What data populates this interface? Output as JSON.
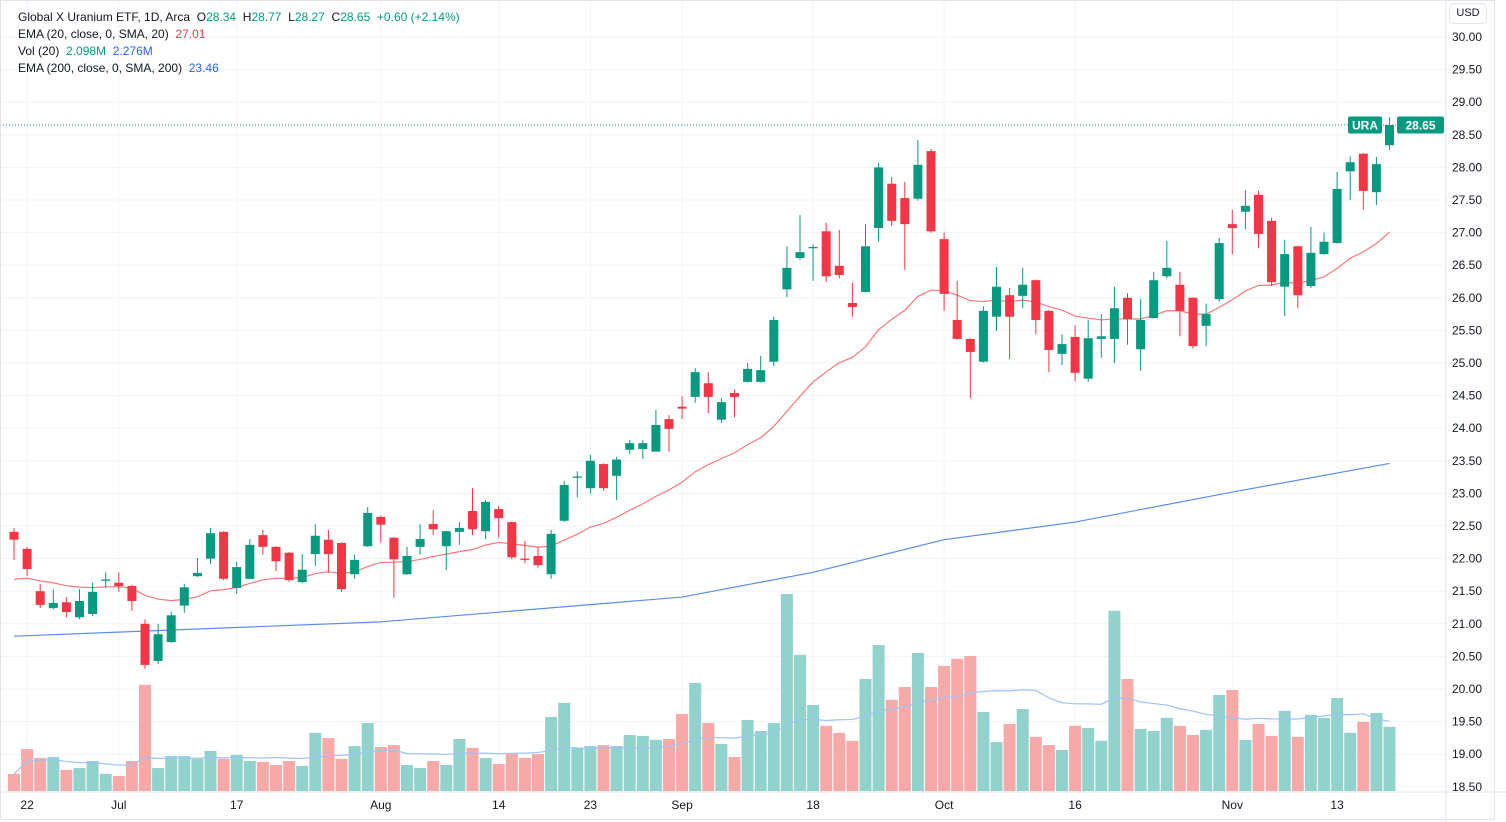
{
  "legend": {
    "title": "Global X Uranium ETF, 1D, Arca",
    "o_label": "O",
    "o": "28.34",
    "h_label": "H",
    "h": "28.77",
    "l_label": "L",
    "l": "28.27",
    "c_label": "C",
    "c": "28.65",
    "change": "+0.60 (+2.14%)",
    "ema20_label": "EMA (20, close, 0, SMA, 20)",
    "ema20_value": "27.01",
    "vol_label": "Vol (20)",
    "vol_value": "2.098M",
    "vol_ma_value": "2.276M",
    "ema200_label": "EMA (200, close, 0, SMA, 200)",
    "ema200_value": "23.46"
  },
  "currency_button": "USD",
  "price_tag": {
    "symbol": "URA",
    "value": "28.65"
  },
  "colors": {
    "up": "#089981",
    "down": "#f23645",
    "vol_up": "#92d2cc",
    "vol_down": "#f7a9a7",
    "ema20": "#f7787c",
    "ema200": "#5b8def",
    "vol_ma": "#9ec3f7"
  },
  "chart_data": {
    "type": "candlestick",
    "title": "Global X Uranium ETF, 1D, Arca",
    "ylim": [
      18.5,
      30.0
    ],
    "y_ticks": [
      "18.50",
      "19.00",
      "19.50",
      "20.00",
      "20.50",
      "21.00",
      "21.50",
      "22.00",
      "22.50",
      "23.00",
      "23.50",
      "24.00",
      "24.50",
      "25.00",
      "25.50",
      "26.00",
      "26.50",
      "27.00",
      "27.50",
      "28.00",
      "28.50",
      "29.00",
      "29.50",
      "30.00"
    ],
    "x_ticks": [
      {
        "index": 1,
        "label": "22"
      },
      {
        "index": 8,
        "label": "Jul"
      },
      {
        "index": 17,
        "label": "17"
      },
      {
        "index": 28,
        "label": "Aug"
      },
      {
        "index": 37,
        "label": "14"
      },
      {
        "index": 44,
        "label": "23"
      },
      {
        "index": 51,
        "label": "Sep"
      },
      {
        "index": 61,
        "label": "18"
      },
      {
        "index": 71,
        "label": "Oct"
      },
      {
        "index": 81,
        "label": "16"
      },
      {
        "index": 93,
        "label": "Nov"
      },
      {
        "index": 101,
        "label": "13"
      }
    ],
    "grid": true,
    "ohlc": [
      [
        22.41,
        22.47,
        21.98,
        22.29
      ],
      [
        22.15,
        22.18,
        21.73,
        21.84
      ],
      [
        21.5,
        21.61,
        21.24,
        21.29
      ],
      [
        21.24,
        21.53,
        21.22,
        21.32
      ],
      [
        21.33,
        21.41,
        21.1,
        21.18
      ],
      [
        21.1,
        21.53,
        21.07,
        21.35
      ],
      [
        21.15,
        21.63,
        21.12,
        21.49
      ],
      [
        21.66,
        21.79,
        21.55,
        21.68
      ],
      [
        21.63,
        21.79,
        21.49,
        21.58
      ],
      [
        21.58,
        21.6,
        21.2,
        21.35
      ],
      [
        21.0,
        21.07,
        20.31,
        20.37
      ],
      [
        20.43,
        21.0,
        20.38,
        20.84
      ],
      [
        20.72,
        21.18,
        20.71,
        21.13
      ],
      [
        21.28,
        21.61,
        21.17,
        21.56
      ],
      [
        21.73,
        22.01,
        21.72,
        21.78
      ],
      [
        22.0,
        22.47,
        21.92,
        22.39
      ],
      [
        22.41,
        22.42,
        21.67,
        21.69
      ],
      [
        21.55,
        21.95,
        21.46,
        21.87
      ],
      [
        21.69,
        22.3,
        21.68,
        22.21
      ],
      [
        22.36,
        22.44,
        22.06,
        22.18
      ],
      [
        22.18,
        22.19,
        21.81,
        21.96
      ],
      [
        22.09,
        22.1,
        21.64,
        21.67
      ],
      [
        21.64,
        22.07,
        21.62,
        21.83
      ],
      [
        22.07,
        22.53,
        21.89,
        22.35
      ],
      [
        22.29,
        22.44,
        21.78,
        22.07
      ],
      [
        22.24,
        22.25,
        21.49,
        21.53
      ],
      [
        21.76,
        22.06,
        21.69,
        21.98
      ],
      [
        22.19,
        22.79,
        22.18,
        22.7
      ],
      [
        22.64,
        22.66,
        22.25,
        22.52
      ],
      [
        22.32,
        22.33,
        21.4,
        21.99
      ],
      [
        21.76,
        22.18,
        21.75,
        22.04
      ],
      [
        22.18,
        22.53,
        22.06,
        22.3
      ],
      [
        22.53,
        22.74,
        22.36,
        22.45
      ],
      [
        22.19,
        22.43,
        21.82,
        22.42
      ],
      [
        22.41,
        22.56,
        22.21,
        22.47
      ],
      [
        22.73,
        23.08,
        22.36,
        22.45
      ],
      [
        22.42,
        22.9,
        22.3,
        22.87
      ],
      [
        22.76,
        22.81,
        22.32,
        22.62
      ],
      [
        22.56,
        22.57,
        21.99,
        22.02
      ],
      [
        22.0,
        22.27,
        21.93,
        21.98
      ],
      [
        22.04,
        22.18,
        21.86,
        21.9
      ],
      [
        21.76,
        22.44,
        21.69,
        22.38
      ],
      [
        22.58,
        23.19,
        22.56,
        23.13
      ],
      [
        23.24,
        23.34,
        22.94,
        23.26
      ],
      [
        23.08,
        23.59,
        23.0,
        23.5
      ],
      [
        23.45,
        23.46,
        23.04,
        23.08
      ],
      [
        23.27,
        23.56,
        22.9,
        23.52
      ],
      [
        23.67,
        23.82,
        23.6,
        23.77
      ],
      [
        23.68,
        23.82,
        23.53,
        23.77
      ],
      [
        23.64,
        24.28,
        23.64,
        24.05
      ],
      [
        24.14,
        24.2,
        23.64,
        23.99
      ],
      [
        24.33,
        24.49,
        24.14,
        24.3
      ],
      [
        24.48,
        24.92,
        24.39,
        24.86
      ],
      [
        24.69,
        24.86,
        24.23,
        24.48
      ],
      [
        24.13,
        24.46,
        24.08,
        24.4
      ],
      [
        24.54,
        24.6,
        24.17,
        24.48
      ],
      [
        24.71,
        25.0,
        24.7,
        24.91
      ],
      [
        24.71,
        25.11,
        24.7,
        24.89
      ],
      [
        25.02,
        25.71,
        24.95,
        25.66
      ],
      [
        26.13,
        26.79,
        26.01,
        26.46
      ],
      [
        26.61,
        27.27,
        26.58,
        26.7
      ],
      [
        26.76,
        26.82,
        26.26,
        26.78
      ],
      [
        27.02,
        27.15,
        26.24,
        26.33
      ],
      [
        26.49,
        27.04,
        26.3,
        26.35
      ],
      [
        25.92,
        26.23,
        25.71,
        25.86
      ],
      [
        26.09,
        27.13,
        26.08,
        26.79
      ],
      [
        27.07,
        28.07,
        26.86,
        28.0
      ],
      [
        27.75,
        27.85,
        27.1,
        27.18
      ],
      [
        27.53,
        27.78,
        26.43,
        27.13
      ],
      [
        27.52,
        28.42,
        27.49,
        28.04
      ],
      [
        28.25,
        28.28,
        27.0,
        27.02
      ],
      [
        26.9,
        27.0,
        25.8,
        26.06
      ],
      [
        25.66,
        26.26,
        25.36,
        25.37
      ],
      [
        25.37,
        25.38,
        24.46,
        25.17
      ],
      [
        25.02,
        25.87,
        25.01,
        25.8
      ],
      [
        25.71,
        26.47,
        25.49,
        26.17
      ],
      [
        26.04,
        26.15,
        25.06,
        25.71
      ],
      [
        26.03,
        26.46,
        25.84,
        26.2
      ],
      [
        26.27,
        26.28,
        25.44,
        25.66
      ],
      [
        25.8,
        25.81,
        24.86,
        25.2
      ],
      [
        25.14,
        25.44,
        24.97,
        25.29
      ],
      [
        25.4,
        25.58,
        24.72,
        24.85
      ],
      [
        24.76,
        25.66,
        24.71,
        25.38
      ],
      [
        25.37,
        25.75,
        25.08,
        25.41
      ],
      [
        25.37,
        26.17,
        25.0,
        25.84
      ],
      [
        26.0,
        26.07,
        25.28,
        25.67
      ],
      [
        25.21,
        25.98,
        24.88,
        25.66
      ],
      [
        25.69,
        26.4,
        25.68,
        26.27
      ],
      [
        26.33,
        26.87,
        26.3,
        26.46
      ],
      [
        26.2,
        26.4,
        25.41,
        25.8
      ],
      [
        26.0,
        26.01,
        25.22,
        25.26
      ],
      [
        25.57,
        25.91,
        25.26,
        25.75
      ],
      [
        25.98,
        26.92,
        25.94,
        26.84
      ],
      [
        27.13,
        27.35,
        26.67,
        27.07
      ],
      [
        27.32,
        27.65,
        27.05,
        27.41
      ],
      [
        27.58,
        27.64,
        26.76,
        26.98
      ],
      [
        27.18,
        27.23,
        26.18,
        26.24
      ],
      [
        26.17,
        26.89,
        25.72,
        26.67
      ],
      [
        26.79,
        26.8,
        25.84,
        26.04
      ],
      [
        26.18,
        27.09,
        26.15,
        26.69
      ],
      [
        26.67,
        27.0,
        26.66,
        26.86
      ],
      [
        26.84,
        27.93,
        26.83,
        27.67
      ],
      [
        27.94,
        28.17,
        27.5,
        28.08
      ],
      [
        28.21,
        28.22,
        27.35,
        27.64
      ],
      [
        27.62,
        28.16,
        27.42,
        28.05
      ],
      [
        28.34,
        28.77,
        28.27,
        28.65
      ]
    ],
    "volume_millions": [
      0.56,
      1.37,
      1.08,
      1.11,
      0.69,
      0.75,
      0.98,
      0.56,
      0.49,
      0.98,
      3.47,
      0.75,
      1.14,
      1.14,
      1.05,
      1.31,
      1.05,
      1.18,
      0.98,
      0.95,
      0.85,
      0.98,
      0.82,
      1.9,
      1.73,
      1.05,
      1.47,
      2.22,
      1.44,
      1.5,
      0.85,
      0.75,
      0.98,
      0.85,
      1.7,
      1.41,
      1.08,
      0.88,
      1.22,
      1.08,
      1.21,
      2.42,
      2.88,
      1.41,
      1.47,
      1.5,
      1.47,
      1.83,
      1.8,
      1.67,
      1.7,
      2.52,
      3.53,
      2.22,
      1.54,
      1.11,
      2.32,
      1.96,
      2.22,
      6.44,
      4.45,
      2.81,
      2.13,
      1.9,
      1.64,
      3.66,
      4.77,
      2.98,
      3.4,
      4.51,
      3.4,
      4.09,
      4.32,
      4.41,
      2.58,
      1.6,
      2.19,
      2.68,
      1.77,
      1.5,
      1.34,
      2.13,
      2.06,
      1.64,
      5.89,
      3.66,
      2.03,
      1.96,
      2.39,
      2.13,
      1.83,
      2.0,
      3.14,
      3.3,
      1.67,
      2.19,
      1.8,
      2.62,
      1.77,
      2.49,
      2.39,
      3.04,
      1.9,
      2.26,
      2.55,
      2.098
    ],
    "ema200_points": [
      {
        "index": 0,
        "value": 20.81
      },
      {
        "index": 28,
        "value": 21.03
      },
      {
        "index": 51,
        "value": 21.41
      },
      {
        "index": 61,
        "value": 21.79
      },
      {
        "index": 71,
        "value": 22.29
      },
      {
        "index": 81,
        "value": 22.56
      },
      {
        "index": 93,
        "value": 23.02
      },
      {
        "index": 105,
        "value": 23.46
      }
    ],
    "last_price": 28.65
  }
}
